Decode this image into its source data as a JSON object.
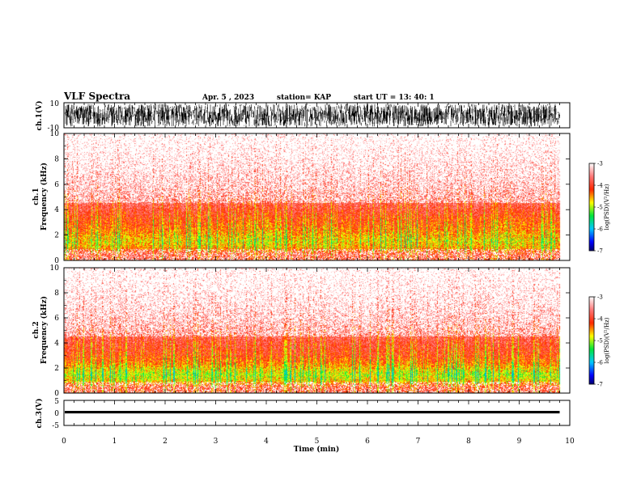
{
  "header": {
    "title": "VLF Spectra",
    "date": "Apr. 5 , 2023",
    "station": "station= KAP",
    "start": "start UT = 13: 40: 1"
  },
  "colors": {
    "colormap": [
      "#ffffff",
      "#ff0000",
      "#ffff00",
      "#00ff00",
      "#00ffff",
      "#0000ff",
      "#000080"
    ],
    "trace": "#000000",
    "frame": "#000000"
  },
  "chart_data": [
    {
      "id": "ch1-waveform",
      "type": "line",
      "ylabel": "ch.1(V)",
      "ylim": [
        -10,
        10
      ],
      "yticks": [
        "10",
        "-10"
      ],
      "xlim": [
        0,
        10
      ],
      "description_values": {
        "trace_extent_min": 9.8,
        "amplitude_min": -10,
        "amplitude_max": 10
      }
    },
    {
      "id": "ch1-spectrogram",
      "type": "heatmap",
      "ylabel": "ch.1\nFrequency (kHz)",
      "ylabel_lines": [
        "ch.1",
        "Frequency (kHz)"
      ],
      "ylim": [
        0,
        10
      ],
      "yticks": [
        "0",
        "2",
        "4",
        "6",
        "8",
        "10"
      ],
      "xlim": [
        0,
        10
      ],
      "data_extent_min": 9.8,
      "colorbar": {
        "label": "log(PSD)(V²/Hz)",
        "range": [
          -7,
          -3
        ],
        "ticks": [
          "-3",
          "-4",
          "-5",
          "-6",
          "-7"
        ]
      },
      "intensity_profile_khz": [
        {
          "f": 0.0,
          "level": -3.9
        },
        {
          "f": 0.5,
          "level": -3.9
        },
        {
          "f": 1.0,
          "level": -4.5
        },
        {
          "f": 1.5,
          "level": -4.7
        },
        {
          "f": 2.0,
          "level": -4.5
        },
        {
          "f": 2.5,
          "level": -4.3
        },
        {
          "f": 3.0,
          "level": -4.2
        },
        {
          "f": 4.0,
          "level": -3.9
        },
        {
          "f": 5.0,
          "level": -3.6
        },
        {
          "f": 6.0,
          "level": -3.4
        },
        {
          "f": 8.0,
          "level": -3.2
        },
        {
          "f": 10.0,
          "level": -3.1
        }
      ]
    },
    {
      "id": "ch2-spectrogram",
      "type": "heatmap",
      "ylabel": "ch.2\nFrequency (kHz)",
      "ylabel_lines": [
        "ch.2",
        "Frequency (kHz)"
      ],
      "ylim": [
        0,
        10
      ],
      "yticks": [
        "0",
        "2",
        "4",
        "6",
        "8",
        "10"
      ],
      "xlim": [
        0,
        10
      ],
      "data_extent_min": 9.8,
      "colorbar": {
        "label": "log(PSD)(V²/Hz)",
        "range": [
          -7,
          -3
        ],
        "ticks": [
          "-3",
          "-4",
          "-5",
          "-6",
          "-7"
        ]
      },
      "intensity_profile_khz": [
        {
          "f": 0.0,
          "level": -3.9
        },
        {
          "f": 0.5,
          "level": -4.0
        },
        {
          "f": 1.0,
          "level": -4.7
        },
        {
          "f": 1.5,
          "level": -4.9
        },
        {
          "f": 2.0,
          "level": -4.6
        },
        {
          "f": 2.5,
          "level": -4.3
        },
        {
          "f": 3.0,
          "level": -4.1
        },
        {
          "f": 4.0,
          "level": -3.9
        },
        {
          "f": 5.0,
          "level": -3.6
        },
        {
          "f": 6.0,
          "level": -3.4
        },
        {
          "f": 8.0,
          "level": -3.2
        },
        {
          "f": 10.0,
          "level": -3.1
        }
      ]
    },
    {
      "id": "ch3-waveform",
      "type": "line",
      "ylabel": "ch.3(V)",
      "ylim": [
        -5,
        5
      ],
      "yticks": [
        "5",
        "0",
        "-5"
      ],
      "xlim": [
        0,
        10
      ],
      "xlabel": "Time (min)",
      "xticks": [
        "0",
        "1",
        "2",
        "3",
        "4",
        "5",
        "6",
        "7",
        "8",
        "9",
        "10"
      ],
      "description_values": {
        "trace_extent_min": 9.8,
        "level": 0.3,
        "band_halfwidth": 0.5
      }
    }
  ]
}
